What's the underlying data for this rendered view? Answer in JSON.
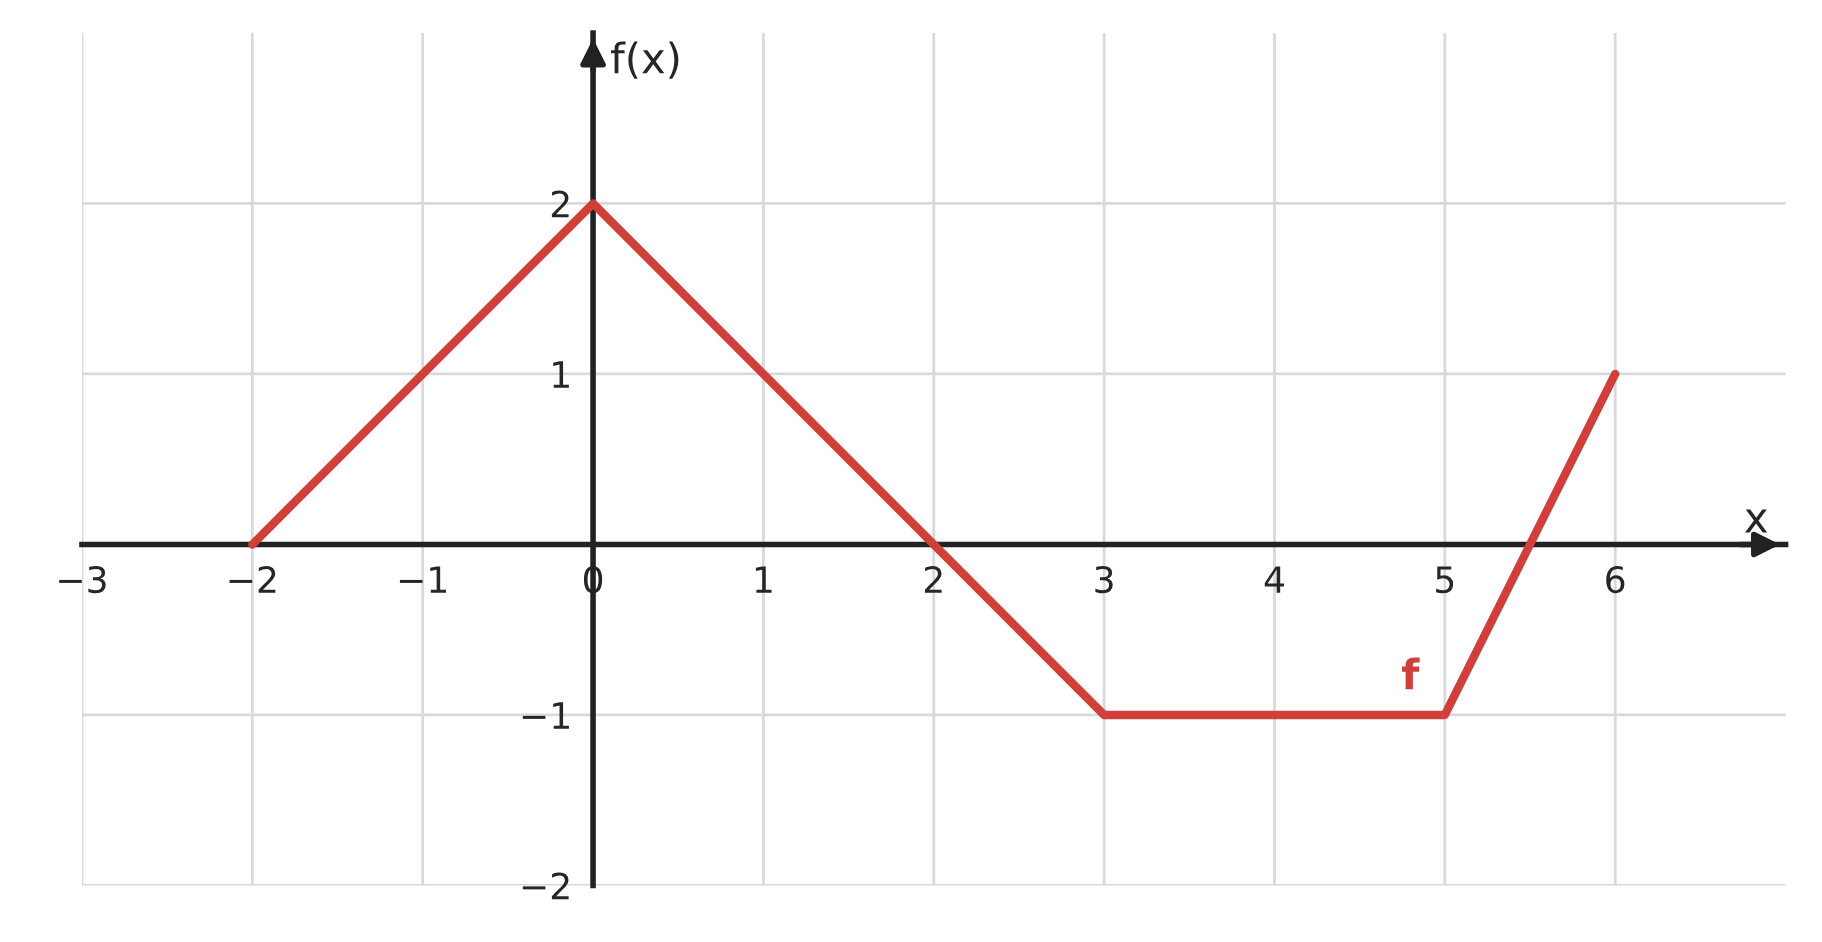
{
  "chart_data": {
    "type": "line",
    "xlabel": "x",
    "ylabel": "f(x)",
    "x": [
      -2,
      0,
      2,
      3,
      5,
      6
    ],
    "series": [
      {
        "name": "f",
        "color": "#d13f3a",
        "values": [
          0,
          2,
          0,
          -1,
          -1,
          1
        ]
      }
    ],
    "xlim": [
      -3,
      7
    ],
    "ylim": [
      -2,
      3
    ],
    "xticks": [
      {
        "value": -3,
        "label": "−3"
      },
      {
        "value": -2,
        "label": "−2"
      },
      {
        "value": -1,
        "label": "−1"
      },
      0,
      1,
      2,
      3,
      4,
      5,
      6
    ],
    "yticks": [
      {
        "value": -2,
        "label": "−2"
      },
      {
        "value": -1,
        "label": "−1"
      },
      1,
      2
    ],
    "grid": true,
    "marker": "none",
    "line_style": "solid"
  }
}
